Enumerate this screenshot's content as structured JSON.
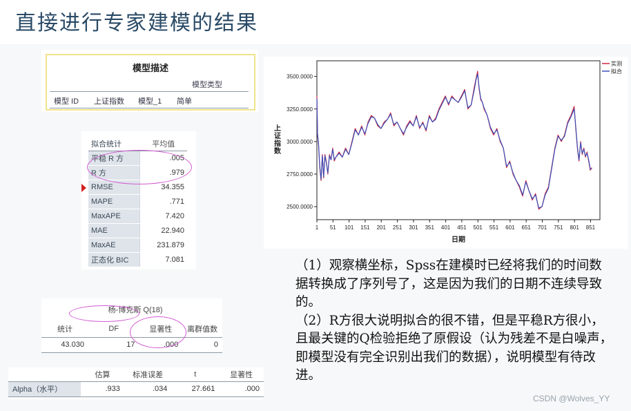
{
  "slide_title": "直接进行专家建模的结果",
  "model_description": {
    "title": "模型描述",
    "column_header": "模型类型",
    "row": {
      "id_label": "模型 ID",
      "series": "上证指数",
      "model": "模型_1",
      "type": "简单"
    }
  },
  "fit_stats": {
    "headers": [
      "拟合统计",
      "平均值"
    ],
    "rows": [
      {
        "label": "平稳 R 方",
        "value": ".005"
      },
      {
        "label": "R 方",
        "value": ".979"
      },
      {
        "label": "RMSE",
        "value": "34.355"
      },
      {
        "label": "MAPE",
        "value": ".771"
      },
      {
        "label": "MaxAPE",
        "value": "7.420"
      },
      {
        "label": "MAE",
        "value": "22.940"
      },
      {
        "label": "MaxAE",
        "value": "231.879"
      },
      {
        "label": "正态化 BIC",
        "value": "7.081"
      }
    ]
  },
  "ljung_box": {
    "title": "杨-博克斯 Q(18)",
    "headers": [
      "统计",
      "DF",
      "显著性",
      "离群值数"
    ],
    "values": [
      "43.030",
      "17",
      ".000",
      "0"
    ]
  },
  "alpha_table": {
    "headers": [
      "估算",
      "标准误差",
      "t",
      "显著性"
    ],
    "row_label": "Alpha（水平）",
    "values": [
      ".933",
      ".034",
      "27.661",
      ".000"
    ]
  },
  "chart_data": {
    "type": "line",
    "ylabel": "上证指数",
    "xlabel": "日期",
    "ylim": [
      2400,
      3620
    ],
    "xlim": [
      1,
      880
    ],
    "yticks": [
      "2500.0000",
      "2750.0000",
      "3000.0000",
      "3250.0000",
      "3500.0000"
    ],
    "xticks": [
      "1",
      "51",
      "101",
      "151",
      "201",
      "251",
      "301",
      "351",
      "401",
      "451",
      "501",
      "551",
      "601",
      "651",
      "701",
      "751",
      "801",
      "851"
    ],
    "legend": [
      "实测",
      "拟合"
    ],
    "series": [
      {
        "name": "实测",
        "color": "#d2243c",
        "x": [
          1,
          3,
          6,
          10,
          14,
          18,
          22,
          26,
          30,
          35,
          40,
          45,
          50,
          55,
          60,
          70,
          80,
          90,
          100,
          110,
          120,
          130,
          140,
          150,
          160,
          170,
          180,
          190,
          200,
          210,
          220,
          230,
          240,
          250,
          260,
          270,
          280,
          290,
          300,
          310,
          320,
          330,
          340,
          350,
          360,
          370,
          380,
          390,
          400,
          410,
          420,
          430,
          440,
          450,
          460,
          470,
          480,
          490,
          495,
          500,
          505,
          510,
          515,
          520,
          530,
          540,
          550,
          560,
          570,
          580,
          590,
          600,
          610,
          620,
          630,
          640,
          650,
          660,
          670,
          680,
          690,
          700,
          710,
          720,
          730,
          740,
          750,
          760,
          770,
          780,
          790,
          800,
          805,
          810,
          815,
          820,
          825,
          830,
          835,
          840,
          845,
          850,
          855
        ],
        "y": [
          3350,
          3050,
          2980,
          2800,
          2700,
          2900,
          2720,
          2900,
          2850,
          2750,
          2900,
          2860,
          2950,
          2850,
          2880,
          2920,
          2880,
          2950,
          2900,
          3000,
          3100,
          3050,
          3120,
          3050,
          3150,
          3200,
          3180,
          3120,
          3100,
          3150,
          3170,
          3220,
          3120,
          3150,
          3100,
          3050,
          3120,
          3160,
          3120,
          3200,
          3100,
          3150,
          3080,
          3200,
          3150,
          3180,
          3250,
          3300,
          3350,
          3280,
          3350,
          3320,
          3300,
          3350,
          3400,
          3250,
          3280,
          3420,
          3480,
          3540,
          3400,
          3320,
          3300,
          3250,
          3200,
          3100,
          3050,
          3100,
          3000,
          2950,
          2800,
          2850,
          2750,
          2700,
          2650,
          2580,
          2700,
          2620,
          2550,
          2600,
          2480,
          2500,
          2600,
          2650,
          2800,
          2950,
          3050,
          3000,
          3050,
          3150,
          3200,
          3270,
          3100,
          2950,
          2850,
          3000,
          2900,
          2950,
          2880,
          2920,
          2850,
          2780,
          2800
        ]
      },
      {
        "name": "拟合",
        "color": "#3a4fb8",
        "x": [
          1,
          3,
          6,
          10,
          14,
          18,
          22,
          26,
          30,
          35,
          40,
          45,
          50,
          55,
          60,
          70,
          80,
          90,
          100,
          110,
          120,
          130,
          140,
          150,
          160,
          170,
          180,
          190,
          200,
          210,
          220,
          230,
          240,
          250,
          260,
          270,
          280,
          290,
          300,
          310,
          320,
          330,
          340,
          350,
          360,
          370,
          380,
          390,
          400,
          410,
          420,
          430,
          440,
          450,
          460,
          470,
          480,
          490,
          495,
          500,
          505,
          510,
          515,
          520,
          530,
          540,
          550,
          560,
          570,
          580,
          590,
          600,
          610,
          620,
          630,
          640,
          650,
          660,
          670,
          680,
          690,
          700,
          710,
          720,
          730,
          740,
          750,
          760,
          770,
          780,
          790,
          800,
          805,
          810,
          815,
          820,
          825,
          830,
          835,
          840,
          845,
          850,
          855
        ],
        "y": [
          3330,
          3060,
          2990,
          2810,
          2710,
          2890,
          2730,
          2890,
          2840,
          2760,
          2890,
          2860,
          2940,
          2860,
          2880,
          2910,
          2880,
          2940,
          2900,
          2990,
          3090,
          3050,
          3110,
          3060,
          3140,
          3190,
          3180,
          3130,
          3100,
          3140,
          3170,
          3210,
          3130,
          3150,
          3100,
          3060,
          3110,
          3150,
          3120,
          3190,
          3110,
          3140,
          3090,
          3190,
          3150,
          3170,
          3240,
          3290,
          3340,
          3290,
          3340,
          3320,
          3300,
          3340,
          3390,
          3260,
          3280,
          3400,
          3470,
          3520,
          3410,
          3330,
          3300,
          3260,
          3200,
          3110,
          3060,
          3090,
          3010,
          2950,
          2810,
          2840,
          2760,
          2700,
          2660,
          2590,
          2690,
          2620,
          2560,
          2590,
          2490,
          2500,
          2590,
          2640,
          2790,
          2940,
          3040,
          3010,
          3040,
          3140,
          3190,
          3250,
          3110,
          2960,
          2860,
          2990,
          2910,
          2940,
          2890,
          2910,
          2860,
          2790,
          2790
        ]
      }
    ]
  },
  "explanation": [
    "（1）观察横坐标，Spss在建模时已经将我们的时间数据转换成了序列号了，这是因为我们的日期不连续导致的。",
    "（2）R方很大说明拟合的很不错，但是平稳R方很小，且最关键的Q检验拒绝了原假设（认为残差不是白噪声，即模型没有完全识别出我们的数据），说明模型有待改进。"
  ],
  "watermark": "CSDN @Wolves_YY",
  "colors": {
    "title": "#2a4a66",
    "accent_ellipse": "#d25ad2",
    "arrow": "#d62020"
  }
}
